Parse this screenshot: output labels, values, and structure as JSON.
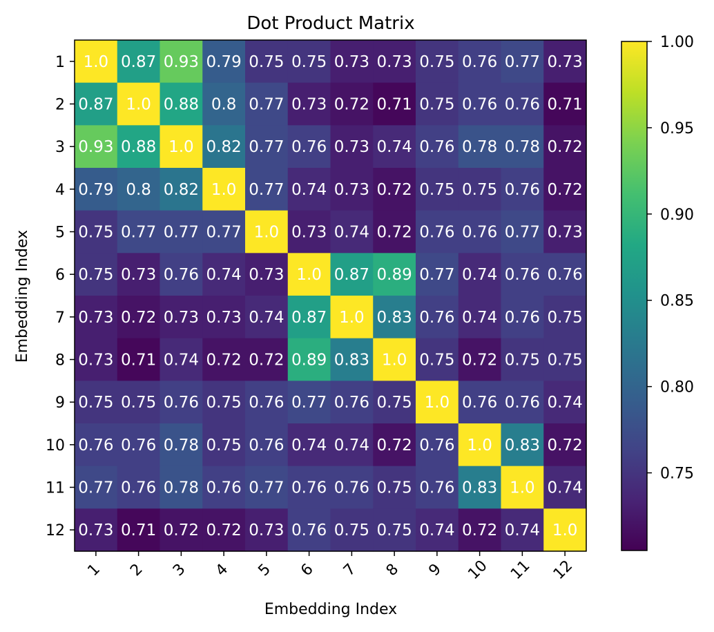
{
  "chart_data": {
    "type": "heatmap",
    "title": "Dot Product Matrix",
    "xlabel": "Embedding Index",
    "ylabel": "Embedding Index",
    "x_categories": [
      "1",
      "2",
      "3",
      "4",
      "5",
      "6",
      "7",
      "8",
      "9",
      "10",
      "11",
      "12"
    ],
    "y_categories": [
      "1",
      "2",
      "3",
      "4",
      "5",
      "6",
      "7",
      "8",
      "9",
      "10",
      "11",
      "12"
    ],
    "value_labels": [
      [
        "1.0",
        "0.87",
        "0.93",
        "0.79",
        "0.75",
        "0.75",
        "0.73",
        "0.73",
        "0.75",
        "0.76",
        "0.77",
        "0.73"
      ],
      [
        "0.87",
        "1.0",
        "0.88",
        "0.8",
        "0.77",
        "0.73",
        "0.72",
        "0.71",
        "0.75",
        "0.76",
        "0.76",
        "0.71"
      ],
      [
        "0.93",
        "0.88",
        "1.0",
        "0.82",
        "0.77",
        "0.76",
        "0.73",
        "0.74",
        "0.76",
        "0.78",
        "0.78",
        "0.72"
      ],
      [
        "0.79",
        "0.8",
        "0.82",
        "1.0",
        "0.77",
        "0.74",
        "0.73",
        "0.72",
        "0.75",
        "0.75",
        "0.76",
        "0.72"
      ],
      [
        "0.75",
        "0.77",
        "0.77",
        "0.77",
        "1.0",
        "0.73",
        "0.74",
        "0.72",
        "0.76",
        "0.76",
        "0.77",
        "0.73"
      ],
      [
        "0.75",
        "0.73",
        "0.76",
        "0.74",
        "0.73",
        "1.0",
        "0.87",
        "0.89",
        "0.77",
        "0.74",
        "0.76",
        "0.76"
      ],
      [
        "0.73",
        "0.72",
        "0.73",
        "0.73",
        "0.74",
        "0.87",
        "1.0",
        "0.83",
        "0.76",
        "0.74",
        "0.76",
        "0.75"
      ],
      [
        "0.73",
        "0.71",
        "0.74",
        "0.72",
        "0.72",
        "0.89",
        "0.83",
        "1.0",
        "0.75",
        "0.72",
        "0.75",
        "0.75"
      ],
      [
        "0.75",
        "0.75",
        "0.76",
        "0.75",
        "0.76",
        "0.77",
        "0.76",
        "0.75",
        "1.0",
        "0.76",
        "0.76",
        "0.74"
      ],
      [
        "0.76",
        "0.76",
        "0.78",
        "0.75",
        "0.76",
        "0.74",
        "0.74",
        "0.72",
        "0.76",
        "1.0",
        "0.83",
        "0.72"
      ],
      [
        "0.77",
        "0.76",
        "0.78",
        "0.76",
        "0.77",
        "0.76",
        "0.76",
        "0.75",
        "0.76",
        "0.83",
        "1.0",
        "0.74"
      ],
      [
        "0.73",
        "0.71",
        "0.72",
        "0.72",
        "0.73",
        "0.76",
        "0.75",
        "0.75",
        "0.74",
        "0.72",
        "0.74",
        "1.0"
      ]
    ],
    "colorbar": {
      "colormap": "viridis",
      "vmin": 0.705,
      "vmax": 1.0,
      "ticks": [
        "0.75",
        "0.80",
        "0.85",
        "0.90",
        "0.95",
        "1.00"
      ]
    },
    "cell_text_color": "#ffffff",
    "frame_color": "#000000"
  }
}
